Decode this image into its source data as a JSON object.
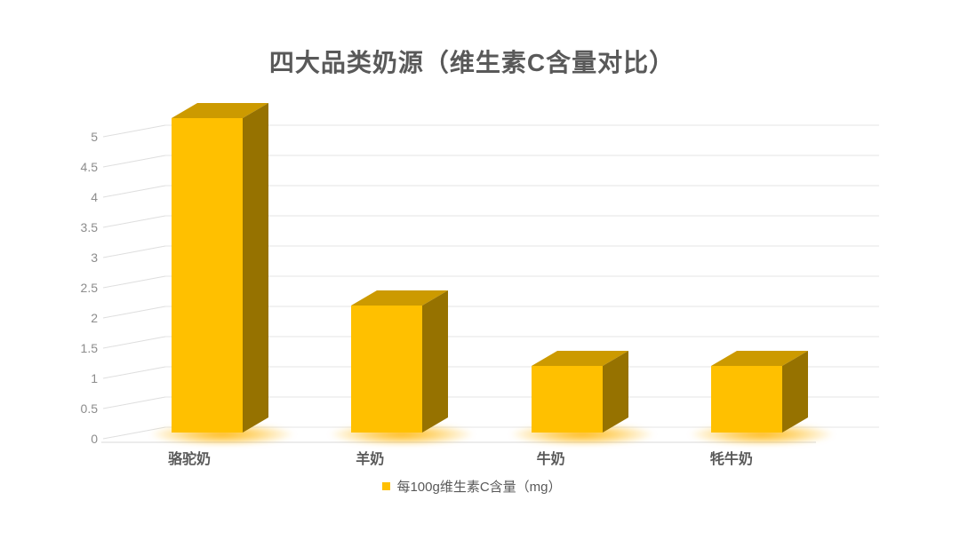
{
  "title": "四大品类奶源（维生素C含量对比）",
  "legend": {
    "marker_color": "#FFC000",
    "label": "每100g维生素C含量（mg）"
  },
  "chart_data": {
    "type": "bar",
    "variant": "3d-column",
    "title": "四大品类奶源（维生素C含量对比）",
    "categories": [
      "骆驼奶",
      "羊奶",
      "牛奶",
      "牦牛奶"
    ],
    "series": [
      {
        "name": "每100g维生素C含量（mg）",
        "values": [
          5.2,
          2.1,
          1.1,
          1.1
        ]
      }
    ],
    "xlabel": "",
    "ylabel": "",
    "ylim": [
      0,
      5
    ],
    "ytick_step": 0.5,
    "yticks": [
      0,
      0.5,
      1,
      1.5,
      2,
      2.5,
      3,
      3.5,
      4,
      4.5,
      5
    ],
    "grid": true,
    "legend_position": "bottom-center",
    "colors": {
      "bar_front": "#FFC000",
      "bar_top": "#CC9A00",
      "bar_side": "#967200",
      "bar_glow": "#FFB300",
      "gridline": "#E5E5E5",
      "tick_connector": "#DEDEDE",
      "floor_line": "#D9D9D9",
      "title_text": "#595959",
      "tick_text": "#8C8C8C",
      "category_text": "#595959",
      "legend_text": "#595959",
      "background": "#FFFFFF"
    }
  }
}
